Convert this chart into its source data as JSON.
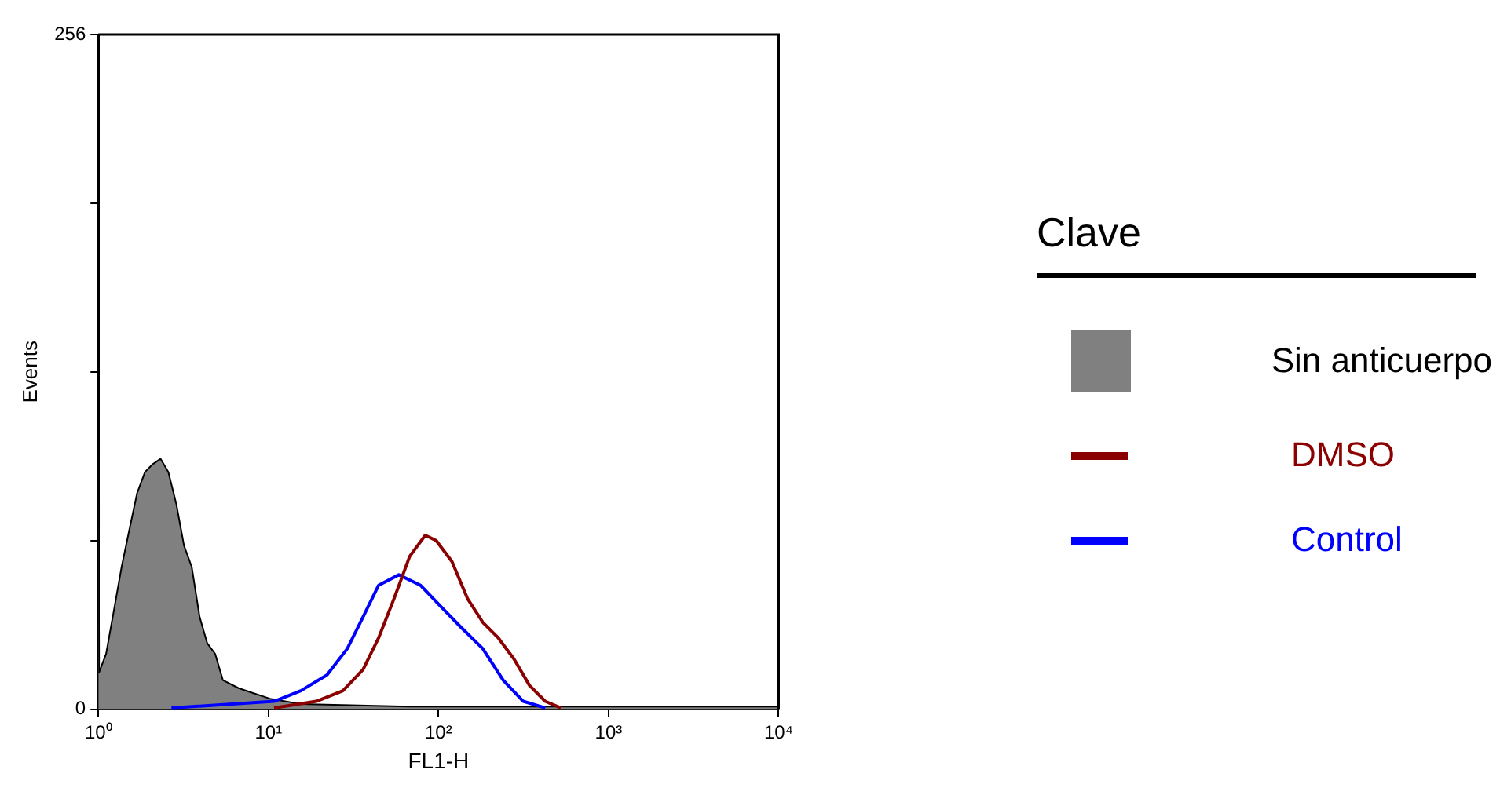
{
  "chart_data": {
    "type": "line",
    "xlabel": "FL1-H",
    "ylabel": "Events",
    "legend_title": "Clave",
    "log": "x",
    "xlim": [
      1,
      10000
    ],
    "xticks": [
      {
        "value": 1,
        "label": "10⁰"
      },
      {
        "value": 10,
        "label": "10¹"
      },
      {
        "value": 100,
        "label": "10²"
      },
      {
        "value": 1000,
        "label": "10³"
      },
      {
        "value": 10000,
        "label": "10⁴"
      }
    ],
    "ylim": [
      0,
      256
    ],
    "yticks": [
      0,
      {
        "value": 64,
        "label": null
      },
      {
        "value": 128,
        "label": null
      },
      {
        "value": 192,
        "label": null
      },
      256
    ],
    "grid": false,
    "legend": "right",
    "marker": "none",
    "series": [
      {
        "name": "Sin anticuerpo",
        "type": "area",
        "color": "#808080",
        "x": [
          1,
          1.01,
          1.11,
          1.23,
          1.37,
          1.52,
          1.69,
          1.88,
          2.09,
          2.32,
          2.58,
          2.87,
          3.19,
          3.54,
          3.94,
          4.37,
          4.86,
          5.4,
          6.67,
          8.23,
          10.2,
          15.5,
          67.6,
          1600,
          10000
        ],
        "values": [
          120,
          14,
          21,
          37,
          54,
          68,
          82,
          90,
          93,
          95,
          90,
          78,
          62,
          54,
          35,
          25,
          21,
          11,
          8,
          6,
          4,
          2,
          1,
          1,
          1
        ]
      },
      {
        "name": "DMSO",
        "color": "#8b0000",
        "x": [
          10.8,
          19.1,
          27.4,
          36,
          44.4,
          54.8,
          67.7,
          83.6,
          96.9,
          120,
          148,
          182,
          225,
          278,
          343,
          424,
          523
        ],
        "values": [
          0.5,
          3,
          7,
          15,
          27,
          42,
          58,
          66,
          64,
          56,
          42,
          33,
          27,
          19,
          9,
          3,
          0.5
        ]
      },
      {
        "name": "Control",
        "color": "#0000ff",
        "x": [
          2.69,
          10.8,
          15.5,
          22.1,
          29.1,
          36,
          44.4,
          58.4,
          78.5,
          103,
          136,
          182,
          240,
          315,
          424
        ],
        "values": [
          0.5,
          3,
          7,
          13,
          23,
          35,
          47,
          51,
          47,
          39,
          31,
          23,
          11,
          3,
          0.5
        ]
      }
    ]
  }
}
